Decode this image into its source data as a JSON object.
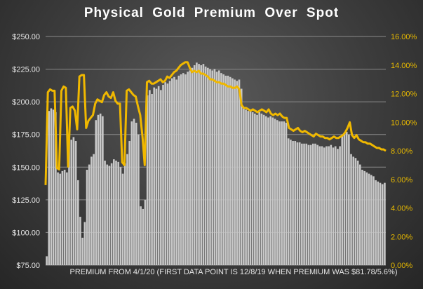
{
  "chart_data": {
    "type": "bar",
    "title": "Physical Gold Premium Over Spot",
    "x_caption": "PREMIUM FROM 4/1/20 (FIRST DATA POINT IS 12/8/19 WHEN PREMIUM WAS $81.78/5.6%)",
    "y_left": {
      "range": [
        75,
        250
      ],
      "ticks": [
        "$75.00",
        "$100.00",
        "$125.00",
        "$150.00",
        "$175.00",
        "$200.00",
        "$225.00",
        "$250.00"
      ]
    },
    "y_right": {
      "range": [
        0,
        16
      ],
      "ticks": [
        "0.00%",
        "2.00%",
        "4.00%",
        "6.00%",
        "8.00%",
        "10.00%",
        "12.00%",
        "14.00%",
        "16.00%"
      ]
    },
    "grid": true,
    "colors": {
      "bars": "#c8c8c8",
      "line": "#f0b800",
      "grid": "#8a8a8a"
    },
    "series": [
      {
        "type": "bar",
        "axis": "left",
        "values": [
          81.78,
          193,
          195,
          194,
          192,
          146,
          145,
          147,
          148,
          146,
          172,
          171,
          173,
          170,
          140,
          112,
          96,
          108,
          148,
          152,
          158,
          160,
          186,
          190,
          191,
          189,
          155,
          152,
          151,
          153,
          156,
          155,
          154,
          150,
          145,
          153,
          160,
          170,
          185,
          187,
          184,
          175,
          120,
          118,
          125,
          205,
          209,
          206,
          211,
          210,
          212,
          209,
          213,
          215,
          214,
          216,
          218,
          219,
          217,
          220,
          221,
          222,
          221,
          223,
          224,
          226,
          228,
          230,
          229,
          228,
          229,
          227,
          226,
          225,
          224,
          225,
          223,
          224,
          222,
          221,
          220,
          220,
          219,
          218,
          217,
          216,
          217,
          210,
          195,
          194,
          193,
          193,
          192,
          191,
          190,
          192,
          191,
          190,
          189,
          188,
          189,
          188,
          187,
          186,
          185,
          185,
          185,
          184,
          172,
          171,
          170,
          170,
          169,
          169,
          168,
          168,
          168,
          167,
          167,
          168,
          168,
          167,
          166,
          166,
          165,
          166,
          166,
          167,
          165,
          166,
          164,
          166,
          175,
          176,
          177,
          175,
          160,
          158,
          157,
          155,
          152,
          148,
          147,
          146,
          145,
          144,
          143,
          140,
          139,
          138,
          137,
          138
        ]
      },
      {
        "type": "line",
        "axis": "right",
        "values": [
          5.6,
          12.1,
          12.3,
          12.2,
          12.2,
          6.8,
          6.7,
          12.2,
          12.5,
          12.4,
          6.9,
          11.0,
          11.1,
          10.8,
          9.5,
          13.2,
          13.3,
          13.3,
          9.6,
          10.1,
          10.3,
          10.5,
          11.3,
          11.6,
          11.5,
          11.4,
          11.9,
          12.1,
          11.8,
          11.7,
          12.1,
          11.5,
          11.3,
          11.3,
          7.2,
          7.0,
          12.2,
          12.3,
          12.1,
          11.9,
          11.8,
          11.1,
          10.5,
          9.0,
          7.0,
          12.8,
          12.9,
          12.7,
          12.7,
          12.8,
          12.9,
          13.0,
          12.8,
          12.9,
          13.2,
          13.1,
          13.3,
          13.5,
          13.6,
          13.8,
          14.0,
          14.1,
          14.2,
          14.2,
          13.8,
          13.5,
          13.6,
          13.5,
          13.6,
          13.4,
          13.4,
          13.3,
          13.2,
          13.0,
          13.0,
          12.9,
          12.8,
          12.8,
          12.7,
          12.7,
          12.6,
          12.5,
          12.5,
          12.4,
          12.4,
          12.5,
          12.3,
          11.2,
          11.0,
          11.0,
          10.9,
          10.8,
          10.9,
          10.8,
          10.7,
          10.8,
          10.9,
          10.8,
          10.7,
          10.9,
          10.6,
          10.5,
          10.6,
          10.5,
          10.6,
          10.4,
          10.3,
          10.3,
          9.6,
          9.5,
          9.4,
          9.5,
          9.6,
          9.4,
          9.3,
          9.4,
          9.3,
          9.2,
          9.1,
          9.0,
          9.2,
          9.1,
          9.0,
          9.0,
          8.9,
          8.9,
          8.8,
          8.9,
          9.0,
          8.9,
          8.9,
          9.0,
          9.1,
          9.3,
          9.6,
          10.0,
          9.1,
          8.9,
          9.1,
          8.8,
          8.7,
          8.6,
          8.6,
          8.5,
          8.5,
          8.4,
          8.3,
          8.2,
          8.2,
          8.1,
          8.1,
          8.0
        ]
      }
    ]
  }
}
